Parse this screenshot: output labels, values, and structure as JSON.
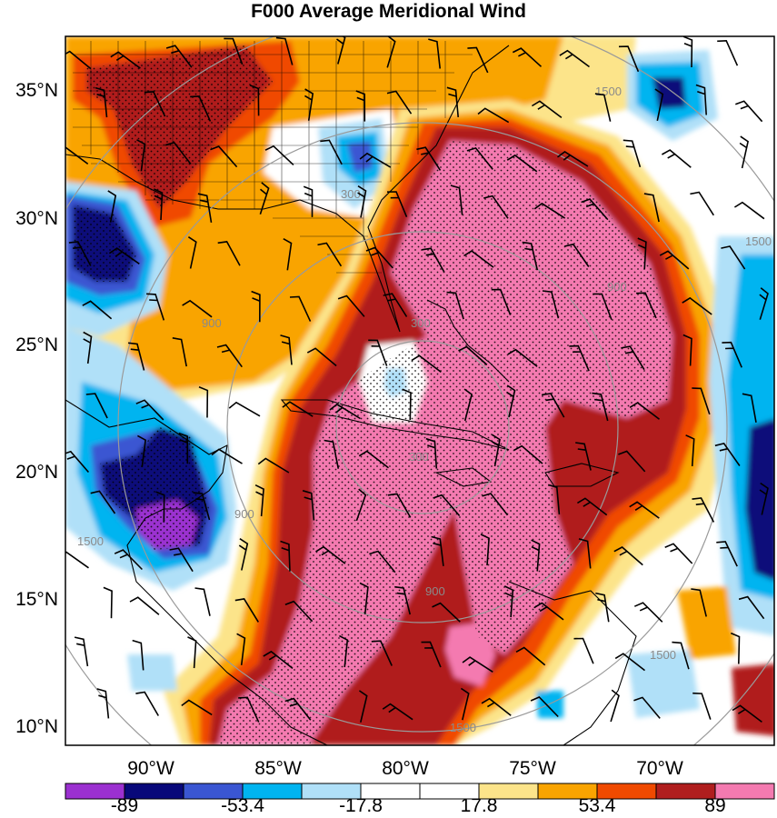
{
  "title": "F000 Average Meridional Wind",
  "latitude_labels": [
    "35°N",
    "30°N",
    "25°N",
    "20°N",
    "15°N",
    "10°N"
  ],
  "longitude_labels": [
    "90°W",
    "85°W",
    "80°W",
    "75°W",
    "70°W"
  ],
  "colorbar": {
    "colors": [
      "#9b30d0",
      "#08087a",
      "#3a56d2",
      "#00b4f0",
      "#b0e0f8",
      "#ffffff",
      "#ffffff",
      "#fce48a",
      "#f9a400",
      "#f04a00",
      "#b01e1e",
      "#f47ab0"
    ],
    "labels": [
      "-89",
      "-53.4",
      "-17.8",
      "17.8",
      "53.4",
      "89"
    ]
  },
  "distance_rings": {
    "labels": [
      "300",
      "900",
      "1500",
      "1500",
      "900",
      "1500",
      "1500",
      "900",
      "900",
      "300",
      "300",
      "1500"
    ]
  },
  "colors": {
    "high_positive": "#f47ab0",
    "positive_dark": "#b01e1e",
    "positive_mid": "#f04a00",
    "positive_low": "#f9a400",
    "positive_faint": "#fce48a",
    "negative_faint": "#b0e0f8",
    "negative_low": "#00b4f0",
    "negative_mid": "#3a56d2",
    "negative_dark": "#08087a",
    "negative_extreme": "#9b30d0",
    "ring": "#9a9a9a"
  }
}
